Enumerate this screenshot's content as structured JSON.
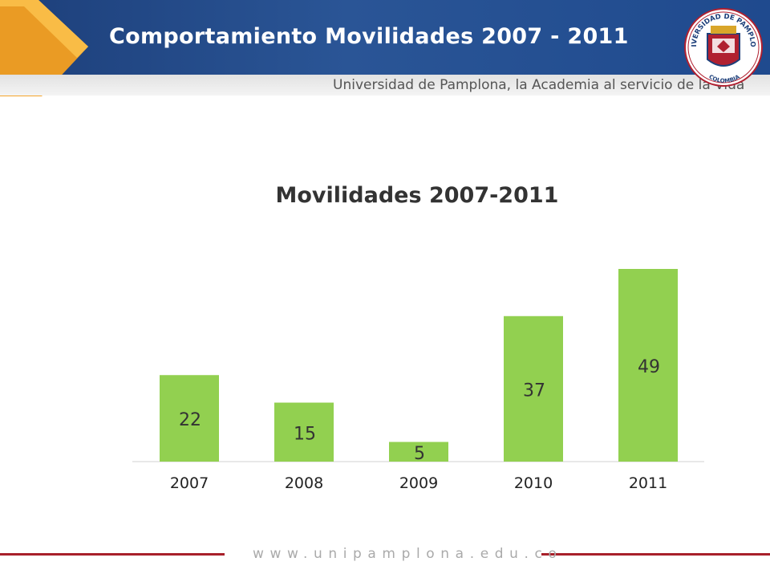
{
  "header": {
    "title": "Comportamiento Movilidades 2007 - 2011",
    "tagline": "Universidad de Pamplоna, la Academia al servicio de la Vida"
  },
  "logo": {
    "ring_text": "UNIVERSIDAD DE PAMPLONA",
    "country": "COLOMBIA"
  },
  "colors": {
    "header_blue": "#23498a",
    "accent_orange": "#f5a020",
    "bar_green": "#92d050",
    "footer_red": "#a8202a"
  },
  "chart_data": {
    "type": "bar",
    "title": "Movilidades 2007-2011",
    "categories": [
      "2007",
      "2008",
      "2009",
      "2010",
      "2011"
    ],
    "values": [
      22,
      15,
      5,
      37,
      49
    ],
    "xlabel": "",
    "ylabel": "",
    "grid": false,
    "legend": "none",
    "ylim": [
      0,
      49
    ]
  },
  "footer": {
    "url": "www.unipamplona.edu.co"
  }
}
